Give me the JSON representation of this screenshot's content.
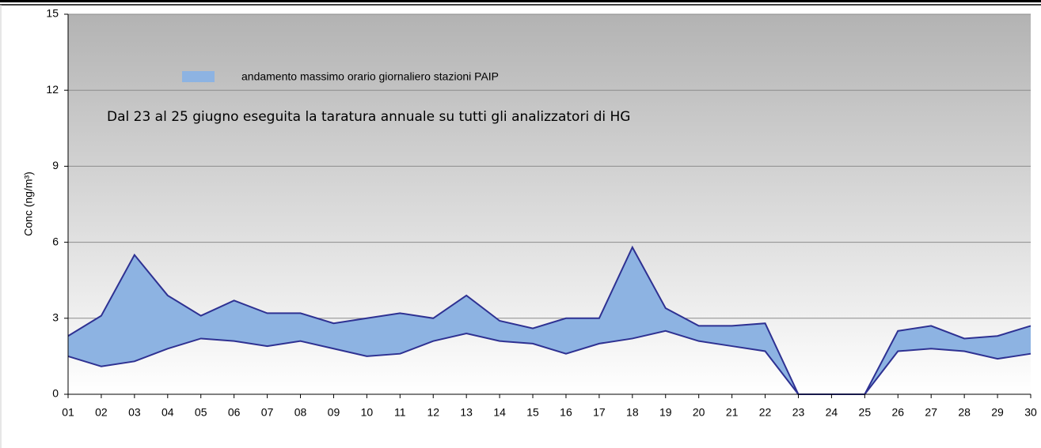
{
  "chart_data": {
    "type": "arearange",
    "y_label": "Conc (ng/m³)",
    "annotation": "Dal 23 al 25 giugno eseguita la taratura annuale su tutti gli analizzatori di HG",
    "categories": [
      "01",
      "02",
      "03",
      "04",
      "05",
      "06",
      "07",
      "08",
      "09",
      "10",
      "11",
      "12",
      "13",
      "14",
      "15",
      "16",
      "17",
      "18",
      "19",
      "20",
      "21",
      "22",
      "23",
      "24",
      "25",
      "26",
      "27",
      "28",
      "29",
      "30"
    ],
    "series": [
      {
        "name": "andamento massimo orario giornaliero stazioni PAIP",
        "color": "#8db3e2",
        "line_color": "#2e3192",
        "high": [
          2.3,
          3.1,
          5.5,
          3.9,
          3.1,
          3.7,
          3.2,
          3.2,
          2.8,
          3.0,
          3.2,
          3.0,
          3.9,
          2.9,
          2.6,
          3.0,
          3.0,
          5.8,
          3.4,
          2.7,
          2.7,
          2.8,
          0,
          0,
          0,
          2.5,
          2.7,
          2.2,
          2.3,
          2.7
        ],
        "low": [
          1.5,
          1.1,
          1.3,
          1.8,
          2.2,
          2.1,
          1.9,
          2.1,
          1.8,
          1.5,
          1.6,
          2.1,
          2.4,
          2.1,
          2.0,
          1.6,
          2.0,
          2.2,
          2.5,
          2.1,
          1.9,
          1.7,
          0,
          0,
          0,
          1.7,
          1.8,
          1.7,
          1.4,
          1.6
        ]
      }
    ],
    "ylim": [
      0,
      15
    ],
    "yticks": [
      0,
      3,
      6,
      9,
      12,
      15
    ],
    "grid": true
  }
}
